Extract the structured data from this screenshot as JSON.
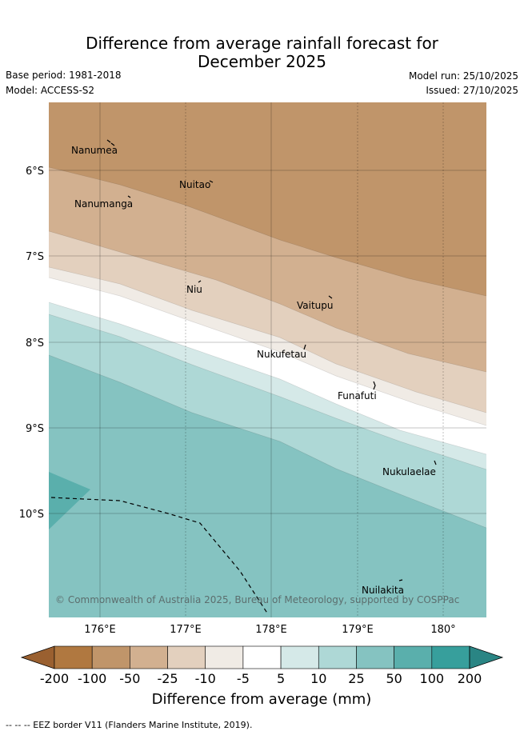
{
  "title": {
    "line1": "Difference from average rainfall forecast for",
    "line2": "December 2025"
  },
  "meta": {
    "base_period": "Base period: 1981-2018",
    "model": "Model: ACCESS-S2",
    "model_run": "Model run: 25/10/2025",
    "issued": "Issued: 27/10/2025"
  },
  "map": {
    "lat_labels": [
      "6°S",
      "7°S",
      "8°S",
      "9°S",
      "10°S"
    ],
    "lon_labels": [
      "176°E",
      "177°E",
      "178°E",
      "179°E",
      "180°"
    ],
    "places": [
      "Nanumea",
      "Nuitao",
      "Nanumanga",
      "Niu",
      "Vaitupu",
      "Nukufetau",
      "Funafuti",
      "Nukulaelae",
      "Nuilakita"
    ],
    "copyright": "© Commonwealth of Australia 2025, Bureau of Meteorology, supported by COSPPac"
  },
  "colorbar": {
    "ticks": [
      "-200",
      "-100",
      "-50",
      "-25",
      "-10",
      "-5",
      "5",
      "10",
      "25",
      "50",
      "100",
      "200"
    ],
    "title": "Difference from average (mm)",
    "colors": [
      "#9a6030",
      "#b07840",
      "#c0956a",
      "#d2b090",
      "#e3d0be",
      "#f0ebe5",
      "#ffffff",
      "#d5e9e8",
      "#aed8d6",
      "#85c3c1",
      "#5aafac",
      "#379f9c",
      "#2a8584"
    ]
  },
  "legend": {
    "eez": "--  --  -- EEZ border V11 (Flanders Marine Institute, 2019)."
  }
}
